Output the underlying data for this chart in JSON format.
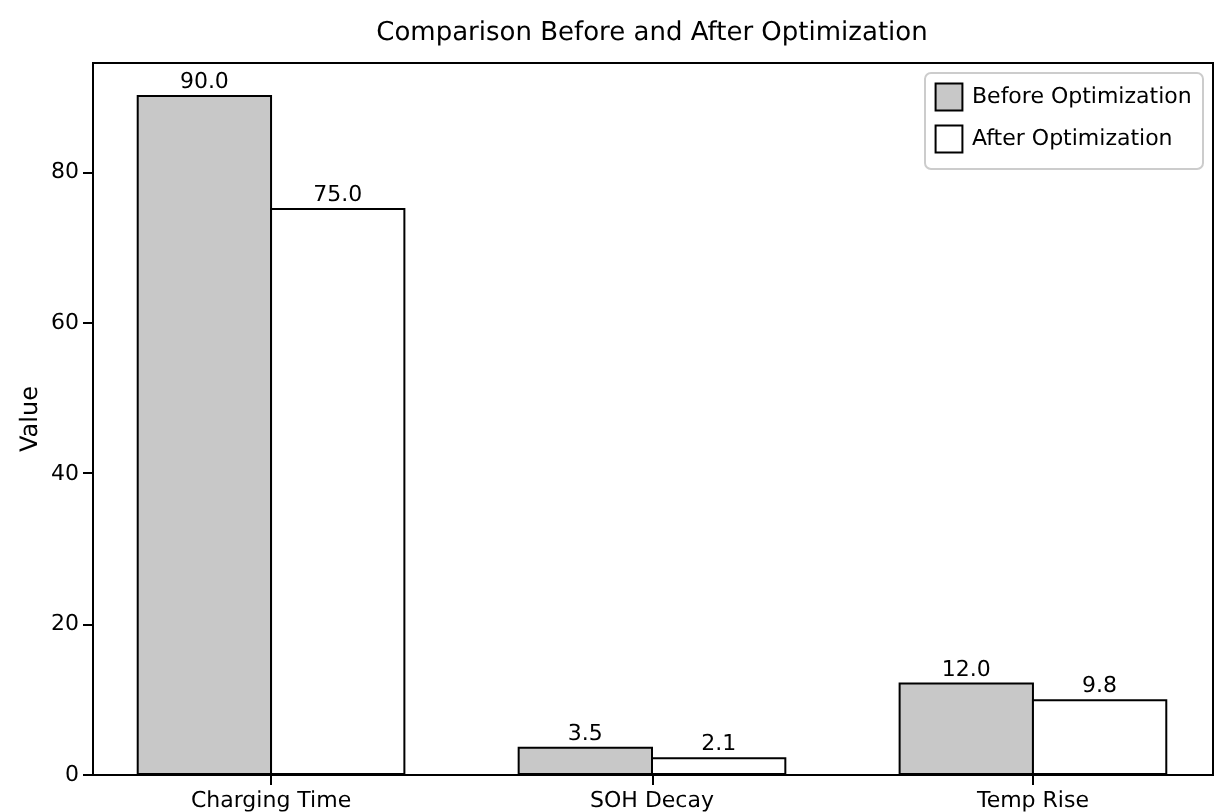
{
  "chart_data": {
    "type": "bar",
    "title": "Comparison Before and After Optimization",
    "ylabel": "Value",
    "categories": [
      "Charging Time",
      "SOH Decay",
      "Temp Rise"
    ],
    "series": [
      {
        "name": "Before Optimization",
        "color": "#c8c8c8",
        "values": [
          90.0,
          3.5,
          12.0
        ],
        "value_labels": [
          "90.0",
          "3.5",
          "12.0"
        ]
      },
      {
        "name": "After Optimization",
        "color": "#ffffff",
        "values": [
          75.0,
          2.1,
          9.8
        ],
        "value_labels": [
          "75.0",
          "2.1",
          "9.8"
        ]
      }
    ],
    "ylim": [
      0,
      94.5
    ],
    "yticks": [
      0,
      20,
      40,
      60,
      80
    ],
    "grid": false,
    "legend": "top right"
  }
}
